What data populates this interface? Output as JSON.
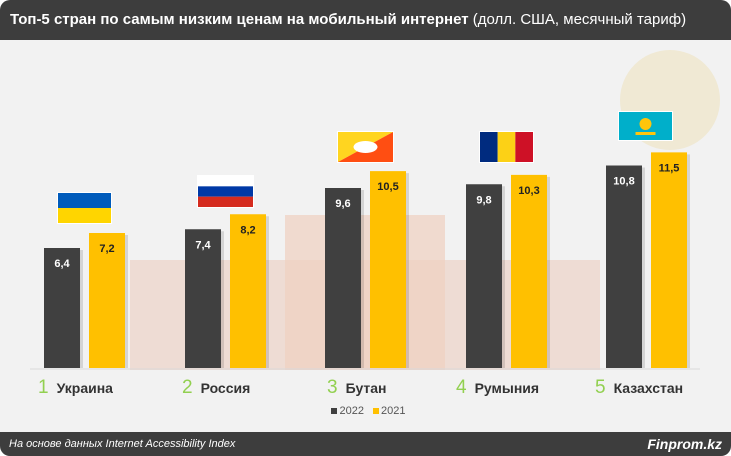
{
  "title_bold": "Топ-5 стран по самым низким ценам на мобильный интернет",
  "title_rest": "(долл. США, месячный тариф)",
  "footer": {
    "source": "На основе данных Internet Accessibility Index",
    "brand": "Finprom.kz"
  },
  "colors": {
    "s2022": "#404040",
    "s2021": "#ffc000",
    "rank": "#92d050"
  },
  "chart_data": {
    "type": "bar",
    "title": "Топ-5 стран по самым низким ценам на мобильный интернет (долл. США, месячный тариф)",
    "categories": [
      "Украина",
      "Россия",
      "Бутан",
      "Румыния",
      "Казахстан"
    ],
    "ranks": [
      "1",
      "2",
      "3",
      "4",
      "5"
    ],
    "series": [
      {
        "name": "2022",
        "values": [
          6.4,
          7.4,
          9.6,
          9.8,
          10.8
        ],
        "labels": [
          "6,4",
          "7,4",
          "9,6",
          "9,8",
          "10,8"
        ]
      },
      {
        "name": "2021",
        "values": [
          7.2,
          8.2,
          10.5,
          10.3,
          11.5
        ],
        "labels": [
          "7,2",
          "8,2",
          "10,5",
          "10,3",
          "11,5"
        ]
      }
    ],
    "ylim": [
      0,
      17
    ],
    "legend": "bottom-center",
    "grid": false
  }
}
